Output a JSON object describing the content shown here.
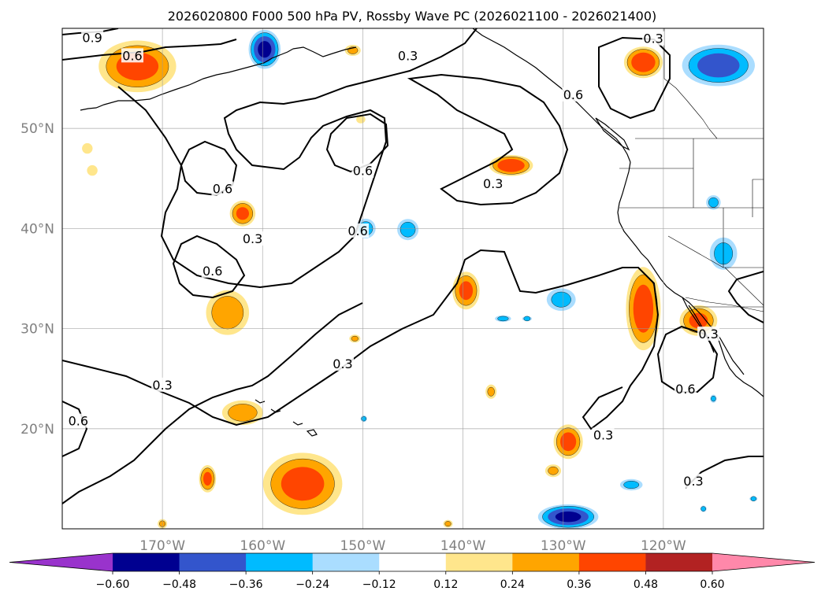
{
  "chart_data": {
    "type": "heatmap",
    "title": "2026020800 F000 500 hPa PV, Rossby Wave PC (2026021100 - 2026021400)",
    "projection": "cylindrical",
    "lon_range": [
      -180,
      -110
    ],
    "lat_range": [
      10,
      60
    ],
    "lon_ticks": [
      {
        "value": -170,
        "label": "170°W"
      },
      {
        "value": -160,
        "label": "160°W"
      },
      {
        "value": -150,
        "label": "150°W"
      },
      {
        "value": -140,
        "label": "140°W"
      },
      {
        "value": -130,
        "label": "130°W"
      },
      {
        "value": -120,
        "label": "120°W"
      }
    ],
    "lat_ticks": [
      {
        "value": 20,
        "label": "20°N"
      },
      {
        "value": 30,
        "label": "30°N"
      },
      {
        "value": 40,
        "label": "40°N"
      },
      {
        "value": 50,
        "label": "50°N"
      }
    ],
    "grid": true,
    "colorbar": {
      "orientation": "horizontal",
      "extend": "both",
      "levels": [
        -0.6,
        -0.48,
        -0.36,
        -0.24,
        -0.12,
        0.12,
        0.24,
        0.36,
        0.48,
        0.6
      ],
      "tick_labels": [
        "−0.60",
        "−0.48",
        "−0.36",
        "−0.24",
        "−0.12",
        "0.12",
        "0.24",
        "0.36",
        "0.48",
        "0.60"
      ],
      "colors": [
        "#9933cc",
        "#000090",
        "#3355cc",
        "#00bbff",
        "#aaddff",
        "#ffffff",
        "#ffe68c",
        "#ffa500",
        "#ff4500",
        "#b22222",
        "#ff88aa"
      ]
    },
    "contour_labels": [
      {
        "text": "0.9",
        "lon": -177.0,
        "lat": 59.1
      },
      {
        "text": "0.6",
        "lon": -173.0,
        "lat": 57.3
      },
      {
        "text": "0.3",
        "lon": -145.5,
        "lat": 57.3
      },
      {
        "text": "0.3",
        "lon": -121.0,
        "lat": 59.0
      },
      {
        "text": "0.6",
        "lon": -129.0,
        "lat": 53.4
      },
      {
        "text": "0.6",
        "lon": -164.0,
        "lat": 44.0
      },
      {
        "text": "0.6",
        "lon": -150.0,
        "lat": 45.8
      },
      {
        "text": "0.3",
        "lon": -137.0,
        "lat": 44.5
      },
      {
        "text": "0.6",
        "lon": -150.5,
        "lat": 39.8
      },
      {
        "text": "0.3",
        "lon": -161.0,
        "lat": 39.0
      },
      {
        "text": "0.6",
        "lon": -165.0,
        "lat": 35.8
      },
      {
        "text": "0.3",
        "lon": -152.0,
        "lat": 26.5
      },
      {
        "text": "0.3",
        "lon": -170.0,
        "lat": 24.4
      },
      {
        "text": "0.6",
        "lon": -178.4,
        "lat": 20.8
      },
      {
        "text": "0.6",
        "lon": -117.8,
        "lat": 24.0
      },
      {
        "text": "0.3",
        "lon": -115.5,
        "lat": 29.5
      },
      {
        "text": "0.3",
        "lon": -126.0,
        "lat": 19.4
      },
      {
        "text": "0.3",
        "lon": -117.0,
        "lat": 14.8
      }
    ],
    "positive_anomaly_areas": [
      {
        "lon": -172.5,
        "lat": 56.2,
        "rx": 4.5,
        "ry": 3.0,
        "peak": 0.4
      },
      {
        "lon": -177.5,
        "lat": 48.0,
        "rx": 0.8,
        "ry": 0.8,
        "peak": 0.15
      },
      {
        "lon": -177.0,
        "lat": 45.8,
        "rx": 0.8,
        "ry": 0.8,
        "peak": 0.15
      },
      {
        "lon": -151.0,
        "lat": 57.8,
        "rx": 1.0,
        "ry": 0.7,
        "peak": 0.26
      },
      {
        "lon": -150.2,
        "lat": 50.9,
        "rx": 0.7,
        "ry": 0.6,
        "peak": 0.15
      },
      {
        "lon": -135.2,
        "lat": 46.3,
        "rx": 2.5,
        "ry": 1.2,
        "peak": 0.45
      },
      {
        "lon": -162.0,
        "lat": 41.5,
        "rx": 1.5,
        "ry": 1.5,
        "peak": 0.38
      },
      {
        "lon": -163.5,
        "lat": 31.6,
        "rx": 2.6,
        "ry": 2.7,
        "peak": 0.32
      },
      {
        "lon": -139.7,
        "lat": 33.8,
        "rx": 1.6,
        "ry": 2.2,
        "peak": 0.38
      },
      {
        "lon": -150.8,
        "lat": 29.0,
        "rx": 0.7,
        "ry": 0.5,
        "peak": 0.26
      },
      {
        "lon": -137.2,
        "lat": 23.7,
        "rx": 0.7,
        "ry": 0.9,
        "peak": 0.26
      },
      {
        "lon": -162.0,
        "lat": 21.6,
        "rx": 2.5,
        "ry": 1.5,
        "peak": 0.3
      },
      {
        "lon": -156.0,
        "lat": 14.5,
        "rx": 4.6,
        "ry": 3.6,
        "peak": 0.4
      },
      {
        "lon": -165.5,
        "lat": 15.0,
        "rx": 1.0,
        "ry": 1.6,
        "peak": 0.38
      },
      {
        "lon": -129.5,
        "lat": 18.7,
        "rx": 1.7,
        "ry": 2.0,
        "peak": 0.4
      },
      {
        "lon": -131.0,
        "lat": 15.8,
        "rx": 1.0,
        "ry": 0.8,
        "peak": 0.26
      },
      {
        "lon": -122.0,
        "lat": 32.0,
        "rx": 2.0,
        "ry": 4.8,
        "peak": 0.42
      },
      {
        "lon": -116.5,
        "lat": 30.8,
        "rx": 2.2,
        "ry": 1.8,
        "peak": 0.38
      },
      {
        "lon": -122.0,
        "lat": 56.6,
        "rx": 2.2,
        "ry": 1.8,
        "peak": 0.45
      },
      {
        "lon": -170.0,
        "lat": 10.5,
        "rx": 0.6,
        "ry": 0.6,
        "peak": 0.26
      },
      {
        "lon": -141.5,
        "lat": 10.5,
        "rx": 0.6,
        "ry": 0.5,
        "peak": 0.26
      }
    ],
    "negative_anomaly_areas": [
      {
        "lon": -159.8,
        "lat": 57.9,
        "rx": 1.8,
        "ry": 2.2,
        "peak": -0.5
      },
      {
        "lon": -114.5,
        "lat": 56.3,
        "rx": 4.2,
        "ry": 2.4,
        "peak": -0.42
      },
      {
        "lon": -129.5,
        "lat": 11.2,
        "rx": 3.4,
        "ry": 1.4,
        "peak": -0.5
      },
      {
        "lon": -149.7,
        "lat": 40.0,
        "rx": 1.2,
        "ry": 1.2,
        "peak": -0.3
      },
      {
        "lon": -145.5,
        "lat": 39.9,
        "rx": 1.3,
        "ry": 1.3,
        "peak": -0.3
      },
      {
        "lon": -130.2,
        "lat": 32.9,
        "rx": 1.8,
        "ry": 1.4,
        "peak": -0.28
      },
      {
        "lon": -114.0,
        "lat": 37.5,
        "rx": 1.7,
        "ry": 2.0,
        "peak": -0.28
      },
      {
        "lon": -115.0,
        "lat": 42.6,
        "rx": 0.9,
        "ry": 0.9,
        "peak": -0.28
      },
      {
        "lon": -123.2,
        "lat": 14.4,
        "rx": 1.4,
        "ry": 0.7,
        "peak": -0.28
      },
      {
        "lon": -136.0,
        "lat": 31.0,
        "rx": 1.0,
        "ry": 0.4,
        "peak": -0.28
      },
      {
        "lon": -133.6,
        "lat": 31.0,
        "rx": 0.6,
        "ry": 0.3,
        "peak": -0.28
      },
      {
        "lon": -149.9,
        "lat": 21.0,
        "rx": 0.4,
        "ry": 0.4,
        "peak": -0.28
      },
      {
        "lon": -115.0,
        "lat": 23.0,
        "rx": 0.4,
        "ry": 0.5,
        "peak": -0.28
      },
      {
        "lon": -116.0,
        "lat": 12.0,
        "rx": 0.4,
        "ry": 0.4,
        "peak": -0.28
      },
      {
        "lon": -111.0,
        "lat": 13.0,
        "rx": 0.5,
        "ry": 0.3,
        "peak": -0.28
      }
    ]
  }
}
